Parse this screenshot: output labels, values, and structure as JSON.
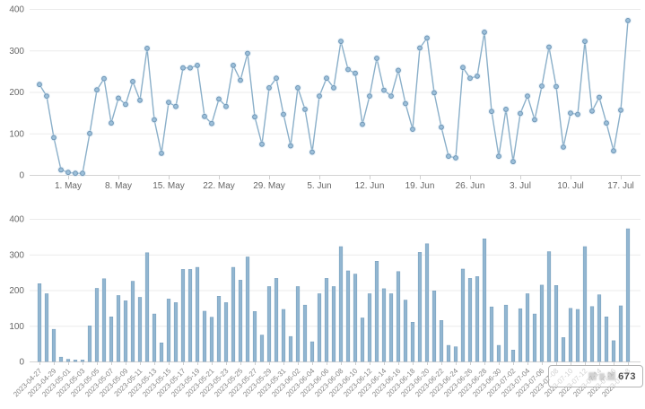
{
  "page": {
    "background": "#ffffff"
  },
  "watermark": {
    "visible_text": "673"
  },
  "chart_data": [
    {
      "type": "line",
      "title": "",
      "xlabel": "",
      "ylabel": "",
      "x": [
        "2023-04-27",
        "2023-04-28",
        "2023-04-29",
        "2023-04-30",
        "2023-05-01",
        "2023-05-02",
        "2023-05-03",
        "2023-05-04",
        "2023-05-05",
        "2023-05-06",
        "2023-05-07",
        "2023-05-08",
        "2023-05-09",
        "2023-05-10",
        "2023-05-11",
        "2023-05-12",
        "2023-05-13",
        "2023-05-14",
        "2023-05-15",
        "2023-05-16",
        "2023-05-17",
        "2023-05-18",
        "2023-05-19",
        "2023-05-20",
        "2023-05-21",
        "2023-05-22",
        "2023-05-23",
        "2023-05-24",
        "2023-05-25",
        "2023-05-26",
        "2023-05-27",
        "2023-05-28",
        "2023-05-29",
        "2023-05-30",
        "2023-05-31",
        "2023-06-01",
        "2023-06-02",
        "2023-06-03",
        "2023-06-04",
        "2023-06-05",
        "2023-06-06",
        "2023-06-07",
        "2023-06-08",
        "2023-06-09",
        "2023-06-10",
        "2023-06-11",
        "2023-06-12",
        "2023-06-13",
        "2023-06-14",
        "2023-06-15",
        "2023-06-16",
        "2023-06-17",
        "2023-06-18",
        "2023-06-19",
        "2023-06-20",
        "2023-06-21",
        "2023-06-22",
        "2023-06-23",
        "2023-06-24",
        "2023-06-25",
        "2023-06-26",
        "2023-06-27",
        "2023-06-28",
        "2023-06-29",
        "2023-06-30",
        "2023-07-01",
        "2023-07-02",
        "2023-07-03",
        "2023-07-04",
        "2023-07-05",
        "2023-07-06",
        "2023-07-07",
        "2023-07-08",
        "2023-07-09",
        "2023-07-10",
        "2023-07-11",
        "2023-07-12",
        "2023-07-13",
        "2023-07-14",
        "2023-07-15",
        "2023-07-16",
        "2023-07-17",
        "2023-07-18"
      ],
      "values": [
        218,
        190,
        90,
        12,
        6,
        4,
        4,
        100,
        205,
        232,
        125,
        185,
        170,
        225,
        180,
        305,
        133,
        52,
        175,
        165,
        258,
        258,
        264,
        141,
        124,
        183,
        165,
        264,
        228,
        293,
        140,
        74,
        210,
        233,
        146,
        70,
        210,
        158,
        55,
        190,
        233,
        210,
        322,
        254,
        245,
        122,
        190,
        281,
        204,
        190,
        252,
        172,
        110,
        306,
        330,
        198,
        115,
        45,
        41,
        259,
        233,
        238,
        344,
        153,
        45,
        158,
        32,
        148,
        190,
        133,
        214,
        308,
        213,
        67,
        149,
        146,
        322,
        154,
        187,
        125,
        58,
        156,
        372
      ],
      "xticks": [
        {
          "label": "1. May",
          "index": 4
        },
        {
          "label": "8. May",
          "index": 11
        },
        {
          "label": "15. May",
          "index": 18
        },
        {
          "label": "22. May",
          "index": 25
        },
        {
          "label": "29. May",
          "index": 32
        },
        {
          "label": "5. Jun",
          "index": 39
        },
        {
          "label": "12. Jun",
          "index": 46
        },
        {
          "label": "19. Jun",
          "index": 53
        },
        {
          "label": "26. Jun",
          "index": 60
        },
        {
          "label": "3. Jul",
          "index": 67
        },
        {
          "label": "10. Jul",
          "index": 74
        },
        {
          "label": "17. Jul",
          "index": 81
        }
      ],
      "yticks": [
        0,
        100,
        200,
        300,
        400
      ],
      "ylim": [
        0,
        400
      ],
      "grid": "horizontal",
      "legend": "none",
      "line_color": "#8aafc9",
      "marker_fill": "#9dc0da",
      "marker_stroke": "#6d94b4",
      "grid_color": "#ebebeb",
      "axis_color": "#d2d2d2",
      "tick_text_color": "#666666"
    },
    {
      "type": "bar",
      "title": "",
      "xlabel": "",
      "ylabel": "",
      "categories": [
        "2023-04-27",
        "2023-04-28",
        "2023-04-29",
        "2023-04-30",
        "2023-05-01",
        "2023-05-02",
        "2023-05-03",
        "2023-05-04",
        "2023-05-05",
        "2023-05-06",
        "2023-05-07",
        "2023-05-08",
        "2023-05-09",
        "2023-05-10",
        "2023-05-11",
        "2023-05-12",
        "2023-05-13",
        "2023-05-14",
        "2023-05-15",
        "2023-05-16",
        "2023-05-17",
        "2023-05-18",
        "2023-05-19",
        "2023-05-20",
        "2023-05-21",
        "2023-05-22",
        "2023-05-23",
        "2023-05-24",
        "2023-05-25",
        "2023-05-26",
        "2023-05-27",
        "2023-05-28",
        "2023-05-29",
        "2023-05-30",
        "2023-05-31",
        "2023-06-01",
        "2023-06-02",
        "2023-06-03",
        "2023-06-04",
        "2023-06-05",
        "2023-06-06",
        "2023-06-07",
        "2023-06-08",
        "2023-06-09",
        "2023-06-10",
        "2023-06-11",
        "2023-06-12",
        "2023-06-13",
        "2023-06-14",
        "2023-06-15",
        "2023-06-16",
        "2023-06-17",
        "2023-06-18",
        "2023-06-19",
        "2023-06-20",
        "2023-06-21",
        "2023-06-22",
        "2023-06-23",
        "2023-06-24",
        "2023-06-25",
        "2023-06-26",
        "2023-06-27",
        "2023-06-28",
        "2023-06-29",
        "2023-06-30",
        "2023-07-01",
        "2023-07-02",
        "2023-07-03",
        "2023-07-04",
        "2023-07-05",
        "2023-07-06",
        "2023-07-07",
        "2023-07-08",
        "2023-07-09",
        "2023-07-10",
        "2023-07-11",
        "2023-07-12",
        "2023-07-13",
        "2023-07-14",
        "2023-07-15",
        "2023-07-16",
        "2023-07-17",
        "2023-07-18"
      ],
      "values": [
        218,
        190,
        90,
        12,
        6,
        4,
        4,
        100,
        205,
        232,
        125,
        185,
        170,
        225,
        180,
        305,
        133,
        52,
        175,
        165,
        258,
        258,
        264,
        141,
        124,
        183,
        165,
        264,
        228,
        293,
        140,
        74,
        210,
        233,
        146,
        70,
        210,
        158,
        55,
        190,
        233,
        210,
        322,
        254,
        245,
        122,
        190,
        281,
        204,
        190,
        252,
        172,
        110,
        306,
        330,
        198,
        115,
        45,
        41,
        259,
        233,
        238,
        344,
        153,
        45,
        158,
        32,
        148,
        190,
        133,
        214,
        308,
        213,
        67,
        149,
        146,
        322,
        154,
        187,
        125,
        58,
        156,
        372
      ],
      "xtick_label_every": 2,
      "xtick_rotation": -45,
      "yticks": [
        0,
        100,
        200,
        300,
        400
      ],
      "ylim": [
        0,
        400
      ],
      "grid": "horizontal",
      "legend": "none",
      "bar_color": "#92b6d1",
      "bar_stroke": "#7ba1bf",
      "grid_color": "#ebebeb",
      "axis_color": "#d2d2d2",
      "tick_text_color": "#858585"
    }
  ]
}
